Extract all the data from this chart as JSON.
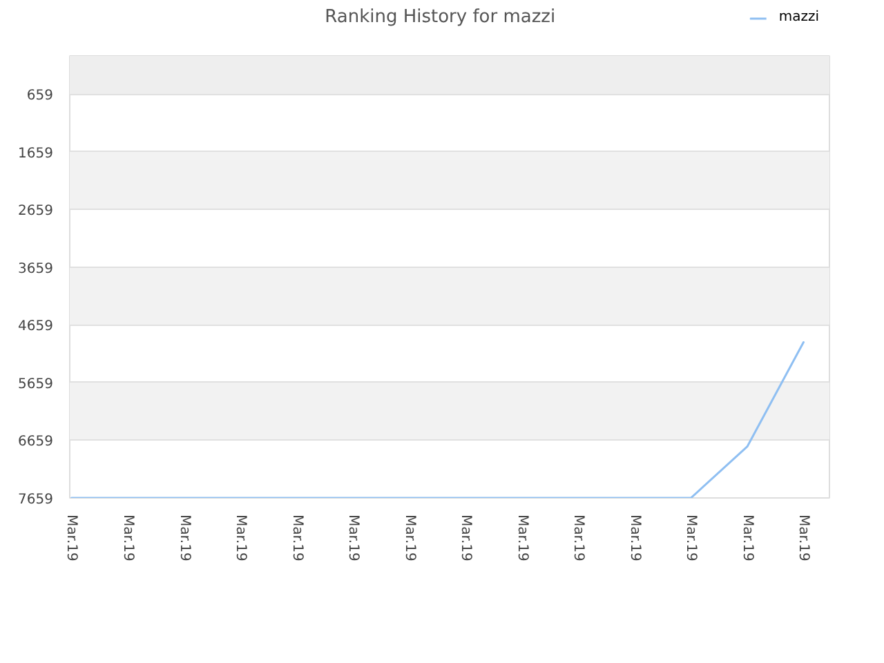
{
  "chart_data": {
    "type": "line",
    "title": "Ranking History for mazzi",
    "categories": [
      "Mar.19",
      "Mar.19",
      "Mar.19",
      "Mar.19",
      "Mar.19",
      "Mar.19",
      "Mar.19",
      "Mar.19",
      "Mar.19",
      "Mar.19",
      "Mar.19",
      "Mar.19",
      "Mar.19",
      "Mar.19"
    ],
    "series": [
      {
        "name": "mazzi",
        "color": "#8fbff2",
        "values": [
          7659,
          7659,
          7659,
          7659,
          7659,
          7659,
          7659,
          7659,
          7659,
          7659,
          7659,
          7659,
          6770,
          4960
        ]
      }
    ],
    "ylim": [
      7659,
      0
    ],
    "yticks": [
      659,
      1659,
      2659,
      3659,
      4659,
      5659,
      6659,
      7659
    ],
    "grid": "y",
    "legend": "top right",
    "bands": [
      {
        "axis": "y",
        "from": 0,
        "to": 659,
        "color": "#eeeeee"
      },
      {
        "axis": "y",
        "from": 1659,
        "to": 2659,
        "color": "#f2f2f2"
      },
      {
        "axis": "y",
        "from": 3659,
        "to": 4659,
        "color": "#f2f2f2"
      },
      {
        "axis": "y",
        "from": 5659,
        "to": 6659,
        "color": "#f2f2f2"
      }
    ]
  }
}
